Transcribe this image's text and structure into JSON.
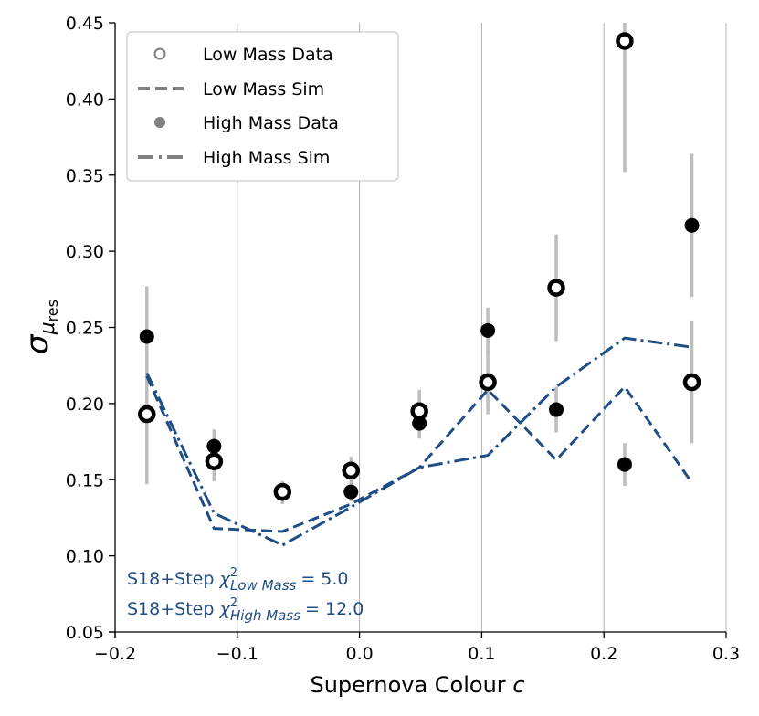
{
  "chart_data": {
    "type": "scatter",
    "xlabel": "Supernova Colour",
    "xlabel_var": "c",
    "ylabel": "σ",
    "ylabel_sub": "μ",
    "ylabel_subsub": "res",
    "xlim": [
      -0.2,
      0.3
    ],
    "ylim": [
      0.05,
      0.45
    ],
    "xticks": [
      -0.2,
      -0.1,
      0.0,
      0.1,
      0.2,
      0.3
    ],
    "xtick_labels": [
      "−0.2",
      "−0.1",
      "0.0",
      "0.1",
      "0.2",
      "0.3"
    ],
    "yticks": [
      0.05,
      0.1,
      0.15,
      0.2,
      0.25,
      0.3,
      0.35,
      0.4,
      0.45
    ],
    "ytick_labels": [
      "0.05",
      "0.10",
      "0.15",
      "0.20",
      "0.25",
      "0.30",
      "0.35",
      "0.40",
      "0.45"
    ],
    "vertical_gridlines": true,
    "legend_position": "top-left",
    "series": [
      {
        "name": "Low Mass Data",
        "kind": "open-marker",
        "x": [
          -0.174,
          -0.119,
          -0.063,
          -0.007,
          0.049,
          0.105,
          0.161,
          0.217,
          0.272
        ],
        "y": [
          0.193,
          0.162,
          0.142,
          0.156,
          0.195,
          0.214,
          0.276,
          0.438,
          0.214
        ],
        "err_low": [
          0.147,
          0.149,
          0.135,
          0.147,
          0.181,
          0.193,
          0.241,
          0.352,
          0.174
        ],
        "err_high": [
          0.238,
          0.175,
          0.149,
          0.165,
          0.209,
          0.235,
          0.311,
          0.45,
          0.254
        ]
      },
      {
        "name": "Low Mass Sim",
        "kind": "dashed-line",
        "x": [
          -0.174,
          -0.119,
          -0.063,
          -0.007,
          0.049,
          0.105,
          0.161,
          0.217,
          0.272
        ],
        "y": [
          0.218,
          0.118,
          0.116,
          0.134,
          0.158,
          0.209,
          0.163,
          0.211,
          0.148
        ]
      },
      {
        "name": "High Mass Data",
        "kind": "filled-marker",
        "x": [
          -0.174,
          -0.119,
          -0.063,
          -0.007,
          0.049,
          0.105,
          0.161,
          0.217,
          0.272
        ],
        "y": [
          0.244,
          0.172,
          0.141,
          0.142,
          0.187,
          0.248,
          0.196,
          0.16,
          0.317
        ],
        "err_low": [
          0.211,
          0.165,
          0.134,
          0.136,
          0.177,
          0.233,
          0.181,
          0.146,
          0.27
        ],
        "err_high": [
          0.277,
          0.183,
          0.148,
          0.149,
          0.196,
          0.263,
          0.211,
          0.174,
          0.364
        ]
      },
      {
        "name": "High Mass Sim",
        "kind": "dashdot-line",
        "x": [
          -0.174,
          -0.119,
          -0.063,
          -0.007,
          0.049,
          0.105,
          0.161,
          0.217,
          0.272
        ],
        "y": [
          0.22,
          0.128,
          0.107,
          0.132,
          0.158,
          0.166,
          0.211,
          0.243,
          0.237
        ]
      }
    ],
    "annotations": [
      {
        "prefix": "S18+Step",
        "chi": "χ",
        "sup": "2",
        "sub": "Low Mass",
        "value": "= 5.0"
      },
      {
        "prefix": "S18+Step",
        "chi": "χ",
        "sup": "2",
        "sub": "High Mass",
        "value": "= 12.0"
      }
    ],
    "colors": {
      "sim": "#1f4e85",
      "data": "#000000",
      "errorbar": "#bdbdbd",
      "grid": "#b0b0b0",
      "legend_marker": "#808080",
      "legend_border": "#cccccc"
    }
  }
}
